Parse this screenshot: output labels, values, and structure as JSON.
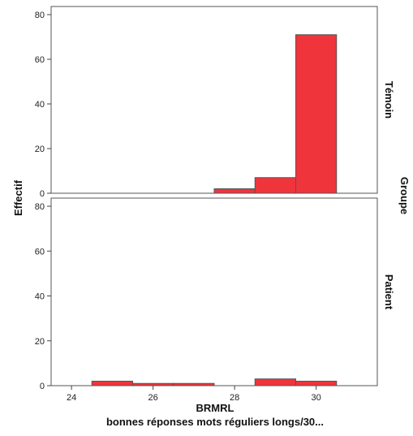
{
  "chart_data": {
    "type": "bar",
    "subtype": "histogram",
    "xlabel": "BRMRL",
    "xlabel_sub": "bonnes réponses mots réguliers longs/30...",
    "ylabel": "Effectif",
    "facet_title": "Groupe",
    "xlim": [
      23.5,
      31.5
    ],
    "ylim": [
      0,
      80
    ],
    "x_ticks": [
      24,
      26,
      28,
      30
    ],
    "y_ticks": [
      0,
      20,
      40,
      60,
      80
    ],
    "bar_color": "#f0343c",
    "bin_width": 1,
    "panels": [
      {
        "name": "Témoin",
        "bins": [
          {
            "x0": 27.5,
            "x1": 28.5,
            "value": 2
          },
          {
            "x0": 28.5,
            "x1": 29.5,
            "value": 7
          },
          {
            "x0": 29.5,
            "x1": 30.5,
            "value": 71
          }
        ]
      },
      {
        "name": "Patient",
        "bins": [
          {
            "x0": 24.5,
            "x1": 25.5,
            "value": 2
          },
          {
            "x0": 25.5,
            "x1": 26.5,
            "value": 1
          },
          {
            "x0": 26.5,
            "x1": 27.5,
            "value": 1
          },
          {
            "x0": 28.5,
            "x1": 29.5,
            "value": 3
          },
          {
            "x0": 29.5,
            "x1": 30.5,
            "value": 2
          }
        ]
      }
    ]
  }
}
